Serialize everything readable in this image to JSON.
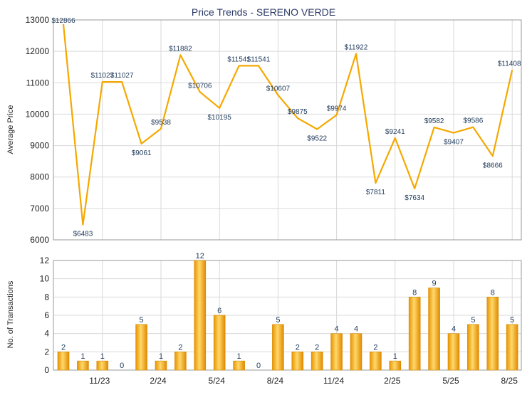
{
  "chart_data": [
    {
      "type": "line",
      "title": "Price Trends - SERENO VERDE",
      "ylabel": "Average Price",
      "ylim": [
        6000,
        13000
      ],
      "yticks": [
        6000,
        7000,
        8000,
        9000,
        10000,
        11000,
        12000,
        13000
      ],
      "xtick_labels": [
        "11/23",
        "2/24",
        "5/24",
        "8/24",
        "11/24",
        "2/25",
        "5/25",
        "8/25"
      ],
      "grid": true,
      "line_color": "#f5a800",
      "series": [
        {
          "values": [
            12866,
            6483,
            11027,
            11027,
            9061,
            9538,
            11882,
            10706,
            10195,
            11541,
            11541,
            10607,
            9875,
            9522,
            9974,
            11922,
            7811,
            9241,
            7634,
            9582,
            9407,
            9586,
            8666,
            11408
          ],
          "labels": [
            "$12866",
            "$6483",
            "$11027",
            "$11027",
            "$9061",
            "$9538",
            "$11882",
            "$10706",
            "$10195",
            "$11541",
            "$11541",
            "$10607",
            "$9875",
            "$9522",
            "$9974",
            "$11922",
            "$7811",
            "$9241",
            "$7634",
            "$9582",
            "$9407",
            "$9586",
            "$8666",
            "$11408"
          ]
        }
      ]
    },
    {
      "type": "bar",
      "ylabel": "No. of Transactions",
      "ylim": [
        0,
        12
      ],
      "yticks": [
        0,
        2,
        4,
        6,
        8,
        10,
        12
      ],
      "xtick_labels": [
        "11/23",
        "2/24",
        "5/24",
        "8/24",
        "11/24",
        "2/25",
        "5/25",
        "8/25"
      ],
      "grid": true,
      "bar_color": "#f5a800",
      "values": [
        2,
        1,
        1,
        0,
        5,
        1,
        2,
        12,
        6,
        1,
        0,
        5,
        2,
        2,
        4,
        4,
        2,
        1,
        8,
        9,
        4,
        5,
        8,
        5
      ]
    }
  ]
}
